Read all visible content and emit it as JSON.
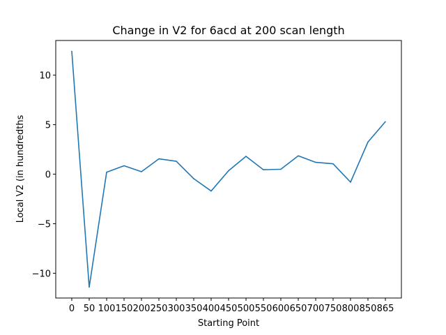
{
  "chart_data": {
    "type": "line",
    "title": "Change in V2 for 6acd at 200 scan length",
    "xlabel": "Starting Point",
    "ylabel": "Local V2 (in hundredths",
    "x_ticks": [
      "0",
      "50",
      "100",
      "150",
      "200",
      "250",
      "300",
      "350",
      "400",
      "450",
      "500",
      "550",
      "600",
      "650",
      "700",
      "750",
      "800",
      "850",
      "865"
    ],
    "y_ticks": [
      -10,
      -5,
      0,
      5,
      10
    ],
    "ylim": [
      -12.5,
      13.5
    ],
    "grid": false,
    "line_color": "#1f77b4",
    "series": [
      {
        "values": [
          12.4,
          -11.4,
          0.2,
          0.85,
          0.25,
          1.55,
          1.3,
          -0.45,
          -1.7,
          0.35,
          1.8,
          0.45,
          0.5,
          1.85,
          1.2,
          1.05,
          -0.8,
          3.25,
          5.3
        ]
      }
    ]
  }
}
